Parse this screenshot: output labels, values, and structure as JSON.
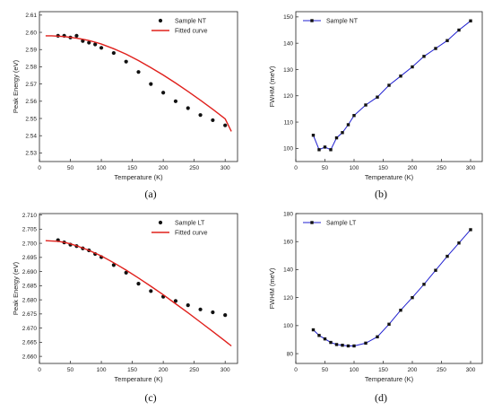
{
  "panels": [
    {
      "caption": "(a)",
      "ylabel": "Peak Energy (eV)",
      "xlabel": "Temperature (K)",
      "xlim": [
        0,
        320
      ],
      "xticks": [
        0,
        50,
        100,
        150,
        200,
        250,
        300
      ],
      "ylim": [
        2.525,
        2.612
      ],
      "yticks": [
        "2.53",
        "2.54",
        "2.55",
        "2.56",
        "2.57",
        "2.58",
        "2.59",
        "2.60",
        "2.61"
      ],
      "ytick_values": [
        2.53,
        2.54,
        2.55,
        2.56,
        2.57,
        2.58,
        2.59,
        2.6,
        2.61
      ],
      "legend": {
        "placement": "top-right",
        "entries": [
          "Sample NT",
          "Fitted curve"
        ]
      },
      "series": [
        {
          "name": "Sample NT",
          "style": "scatter",
          "color": "#111111",
          "x": [
            30,
            40,
            50,
            60,
            70,
            80,
            90,
            100,
            120,
            140,
            160,
            180,
            200,
            220,
            240,
            260,
            280,
            300
          ],
          "y": [
            2.598,
            2.598,
            2.597,
            2.598,
            2.595,
            2.594,
            2.593,
            2.591,
            2.588,
            2.583,
            2.577,
            2.57,
            2.565,
            2.56,
            2.556,
            2.552,
            2.549,
            2.546
          ]
        },
        {
          "name": "Fitted curve",
          "style": "line",
          "color": "#e0201c",
          "x": [
            10,
            20,
            30,
            40,
            50,
            60,
            70,
            80,
            90,
            100,
            120,
            140,
            160,
            180,
            200,
            220,
            240,
            260,
            280,
            300,
            310
          ],
          "y": [
            2.598,
            2.598,
            2.5978,
            2.5975,
            2.5971,
            2.5966,
            2.596,
            2.5952,
            2.5943,
            2.5932,
            2.5905,
            2.5873,
            2.5836,
            2.5795,
            2.5752,
            2.5706,
            2.5657,
            2.5606,
            2.5553,
            2.5498,
            2.5425
          ]
        }
      ]
    },
    {
      "caption": "(b)",
      "ylabel": "FWHM (meV)",
      "xlabel": "Temperature (K)",
      "xlim": [
        0,
        320
      ],
      "xticks": [
        0,
        50,
        100,
        150,
        200,
        250,
        300
      ],
      "ylim": [
        95,
        152
      ],
      "yticks": [
        "100",
        "110",
        "120",
        "130",
        "140",
        "150"
      ],
      "ytick_values": [
        100,
        110,
        120,
        130,
        140,
        150
      ],
      "legend": {
        "placement": "top-left",
        "entries": [
          "Sample NT"
        ]
      },
      "series": [
        {
          "name": "Sample NT",
          "style": "line-marker",
          "color": "#1f1fd0",
          "x": [
            30,
            40,
            50,
            60,
            70,
            80,
            90,
            100,
            120,
            140,
            160,
            180,
            200,
            220,
            240,
            260,
            280,
            300
          ],
          "y": [
            105,
            99.5,
            100.5,
            99.5,
            104,
            106,
            109,
            112.5,
            116.5,
            119.5,
            124,
            127.5,
            131,
            135,
            138,
            141,
            145,
            148.5
          ]
        }
      ]
    },
    {
      "caption": "(c)",
      "ylabel": "Peak Energy (eV)",
      "xlabel": "Temperature (K)",
      "xlim": [
        0,
        320
      ],
      "xticks": [
        0,
        50,
        100,
        150,
        200,
        250,
        300
      ],
      "ylim": [
        2.6575,
        2.7105
      ],
      "yticks": [
        "2.660",
        "2.665",
        "2.670",
        "2.675",
        "2.680",
        "2.685",
        "2.690",
        "2.695",
        "2.700",
        "2.705",
        "2.710"
      ],
      "ytick_values": [
        2.66,
        2.665,
        2.67,
        2.675,
        2.68,
        2.685,
        2.69,
        2.695,
        2.7,
        2.705,
        2.71
      ],
      "legend": {
        "placement": "top-right",
        "entries": [
          "Sample LT",
          "Fitted curve"
        ]
      },
      "series": [
        {
          "name": "Sample LT",
          "style": "scatter",
          "color": "#111111",
          "x": [
            30,
            40,
            50,
            60,
            70,
            80,
            90,
            100,
            120,
            140,
            160,
            180,
            200,
            220,
            240,
            260,
            280,
            300
          ],
          "y": [
            2.7011,
            2.7003,
            2.6995,
            2.699,
            2.6982,
            2.6975,
            2.6962,
            2.6951,
            2.6923,
            2.6896,
            2.6857,
            2.6831,
            2.6811,
            2.6796,
            2.6781,
            2.6766,
            2.6756,
            2.6746
          ]
        },
        {
          "name": "Fitted curve",
          "style": "line",
          "color": "#e0201c",
          "x": [
            10,
            20,
            30,
            40,
            50,
            60,
            70,
            80,
            90,
            100,
            120,
            140,
            160,
            180,
            200,
            220,
            240,
            260,
            280,
            300,
            310
          ],
          "y": [
            2.7009,
            2.7008,
            2.7007,
            2.7003,
            2.6998,
            2.6991,
            2.6983,
            2.6975,
            2.6965,
            2.6955,
            2.6931,
            2.6905,
            2.6877,
            2.6848,
            2.6818,
            2.6786,
            2.6754,
            2.6721,
            2.6688,
            2.6654,
            2.6637
          ]
        }
      ]
    },
    {
      "caption": "(d)",
      "ylabel": "FWHM (meV)",
      "xlabel": "Temperature (K)",
      "xlim": [
        0,
        320
      ],
      "xticks": [
        0,
        50,
        100,
        150,
        200,
        250,
        300
      ],
      "ylim": [
        73,
        180
      ],
      "yticks": [
        "80",
        "100",
        "120",
        "140",
        "160",
        "180"
      ],
      "ytick_values": [
        80,
        100,
        120,
        140,
        160,
        180
      ],
      "legend": {
        "placement": "top-left",
        "entries": [
          "Sample LT"
        ]
      },
      "series": [
        {
          "name": "Sample LT",
          "style": "line-marker",
          "color": "#1f1fd0",
          "x": [
            30,
            40,
            50,
            60,
            70,
            80,
            90,
            100,
            120,
            140,
            160,
            180,
            200,
            220,
            240,
            260,
            280,
            300
          ],
          "y": [
            97,
            93,
            90.5,
            88,
            86.5,
            86,
            85.5,
            85.5,
            87.5,
            92,
            101,
            111,
            120,
            129.5,
            139.5,
            149.5,
            159,
            168.5
          ]
        }
      ]
    }
  ],
  "chart_data": [
    {
      "type": "scatter",
      "panel": "(a)",
      "xlabel": "Temperature (K)",
      "ylabel": "Peak Energy (eV)",
      "xlim": [
        0,
        320
      ],
      "ylim": [
        2.525,
        2.612
      ]
    },
    {
      "type": "line",
      "panel": "(b)",
      "xlabel": "Temperature (K)",
      "ylabel": "FWHM (meV)",
      "xlim": [
        0,
        320
      ],
      "ylim": [
        95,
        152
      ]
    },
    {
      "type": "scatter",
      "panel": "(c)",
      "xlabel": "Temperature (K)",
      "ylabel": "Peak Energy (eV)",
      "xlim": [
        0,
        320
      ],
      "ylim": [
        2.6575,
        2.7105
      ]
    },
    {
      "type": "line",
      "panel": "(d)",
      "xlabel": "Temperature (K)",
      "ylabel": "FWHM (meV)",
      "xlim": [
        0,
        320
      ],
      "ylim": [
        73,
        180
      ]
    }
  ]
}
